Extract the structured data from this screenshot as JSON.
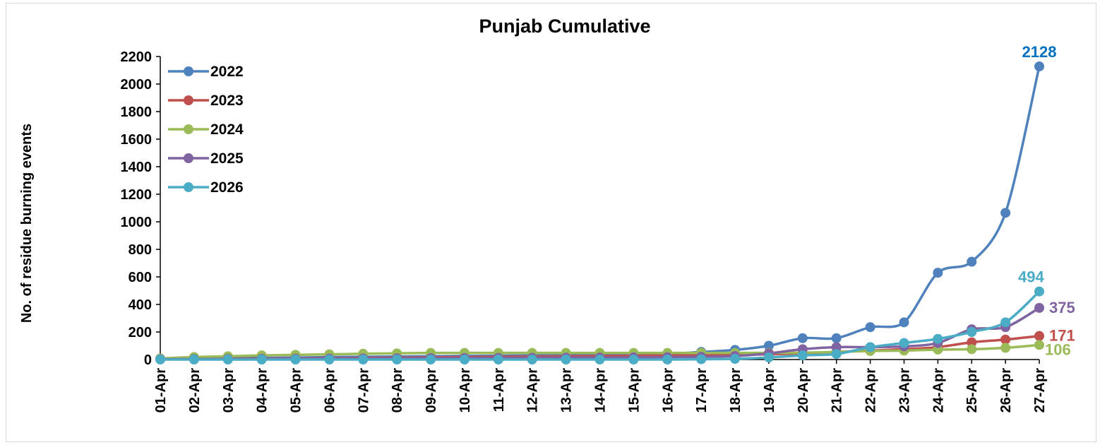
{
  "chart_data": {
    "type": "line",
    "title": "Punjab Cumulative",
    "xlabel": "",
    "ylabel": "No. of residue burning events",
    "ylim": [
      0,
      2200
    ],
    "yticks": [
      0,
      200,
      400,
      600,
      800,
      1000,
      1200,
      1400,
      1600,
      1800,
      2000,
      2200
    ],
    "grid": false,
    "legend_position": "top-left",
    "categories": [
      "01-Apr",
      "02-Apr",
      "03-Apr",
      "04-Apr",
      "05-Apr",
      "06-Apr",
      "07-Apr",
      "08-Apr",
      "09-Apr",
      "10-Apr",
      "11-Apr",
      "12-Apr",
      "13-Apr",
      "14-Apr",
      "15-Apr",
      "16-Apr",
      "17-Apr",
      "18-Apr",
      "19-Apr",
      "20-Apr",
      "21-Apr",
      "22-Apr",
      "23-Apr",
      "24-Apr",
      "25-Apr",
      "26-Apr",
      "27-Apr"
    ],
    "series": [
      {
        "name": "2022",
        "color": "#4f81bd",
        "end_label": "2128",
        "end_label_color": "#0070c0",
        "values": [
          5,
          8,
          10,
          12,
          14,
          18,
          20,
          22,
          24,
          26,
          28,
          30,
          32,
          34,
          36,
          40,
          55,
          70,
          100,
          155,
          155,
          235,
          270,
          630,
          710,
          1065,
          2128
        ]
      },
      {
        "name": "2023",
        "color": "#c0504d",
        "end_label": "171",
        "end_label_color": "#c0504d",
        "values": [
          3,
          5,
          6,
          7,
          8,
          10,
          12,
          14,
          16,
          18,
          20,
          22,
          24,
          26,
          28,
          30,
          32,
          34,
          38,
          45,
          55,
          65,
          75,
          90,
          125,
          145,
          171
        ]
      },
      {
        "name": "2024",
        "color": "#9bbb59",
        "end_label": "106",
        "end_label_color": "#9bbb59",
        "values": [
          8,
          18,
          24,
          30,
          34,
          38,
          42,
          45,
          48,
          48,
          48,
          48,
          48,
          48,
          48,
          48,
          48,
          48,
          48,
          50,
          55,
          62,
          65,
          72,
          75,
          85,
          106
        ]
      },
      {
        "name": "2025",
        "color": "#8064a2",
        "end_label": "375",
        "end_label_color": "#8064a2",
        "values": [
          2,
          3,
          4,
          5,
          6,
          7,
          8,
          9,
          10,
          11,
          12,
          13,
          14,
          15,
          16,
          17,
          20,
          25,
          45,
          75,
          90,
          90,
          95,
          120,
          220,
          235,
          375
        ]
      },
      {
        "name": "2026",
        "color": "#4bacc6",
        "end_label": "494",
        "end_label_color": "#4bacc6",
        "values": [
          0,
          0,
          0,
          0,
          0,
          0,
          0,
          0,
          0,
          0,
          0,
          0,
          0,
          0,
          0,
          0,
          2,
          5,
          15,
          30,
          40,
          90,
          120,
          150,
          200,
          270,
          494
        ]
      }
    ]
  }
}
